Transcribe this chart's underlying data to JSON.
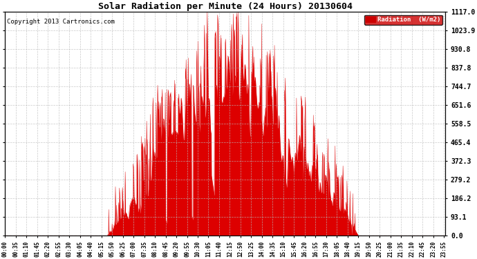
{
  "title": "Solar Radiation per Minute (24 Hours) 20130604",
  "copyright": "Copyright 2013 Cartronics.com",
  "legend_label": "Radiation  (W/m2)",
  "background_color": "#ffffff",
  "plot_bg_color": "#ffffff",
  "fill_color": "#dd0000",
  "line_color": "#dd0000",
  "grid_color": "#bbbbbb",
  "legend_bg": "#cc0000",
  "legend_text_color": "#ffffff",
  "yticks": [
    0.0,
    93.1,
    186.2,
    279.2,
    372.3,
    465.4,
    558.5,
    651.6,
    744.7,
    837.8,
    930.8,
    1023.9,
    1117.0
  ],
  "ymax": 1117.0,
  "ymin": 0.0,
  "dpi": 100,
  "figsize": [
    6.9,
    3.75
  ]
}
